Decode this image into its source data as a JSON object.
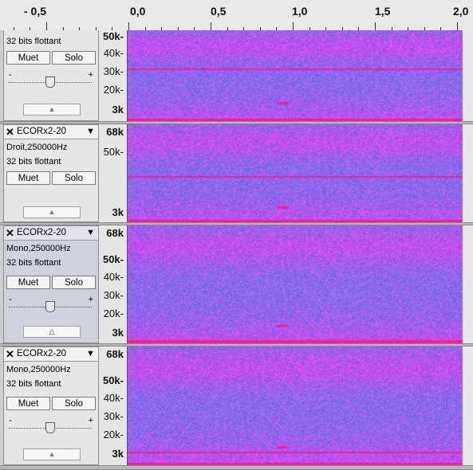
{
  "ruler": {
    "labels": [
      "- 0,5",
      "0,0",
      "0,5",
      "1,0",
      "1,5",
      "2,0"
    ]
  },
  "common": {
    "mute_label": "Muet",
    "solo_label": "Solo",
    "gain_minus": "-",
    "gain_plus": "+"
  },
  "tracks": [
    {
      "name": "",
      "rate_line": "",
      "format_line": "32 bits flottant",
      "scale_labels": [
        "50k-",
        "40k-",
        "30k-",
        "20k-",
        "3k"
      ],
      "selected": false,
      "has_gain": true
    },
    {
      "name": "ECORx2-20",
      "rate_line": "Droit,250000Hz",
      "format_line": "32 bits flottant",
      "scale_labels": [
        "68k",
        "50k-",
        "3k"
      ],
      "selected": false,
      "has_gain": false
    },
    {
      "name": "ECORx2-20",
      "rate_line": "Mono,250000Hz",
      "format_line": "32 bits flottant",
      "scale_labels": [
        "68k",
        "50k-",
        "40k-",
        "30k-",
        "20k-",
        "3k"
      ],
      "selected": true,
      "has_gain": true
    },
    {
      "name": "ECORx2-20",
      "rate_line": "Mono,250000Hz",
      "format_line": "32 bits flottant",
      "scale_labels": [
        "68k",
        "50k-",
        "40k-",
        "30k-",
        "20k-",
        "3k"
      ],
      "selected": false,
      "has_gain": true
    }
  ],
  "icons": {
    "close": "close-icon",
    "dropdown": "dropdown-arrow-icon",
    "collapse": "collapse-arrow-icon",
    "gain_thumb": "slider-thumb-icon"
  },
  "colors": {
    "spectrogram_base": "#6a7de0",
    "spectrogram_magenta": "#e040c8",
    "signal_line": "#ff1aa0"
  }
}
